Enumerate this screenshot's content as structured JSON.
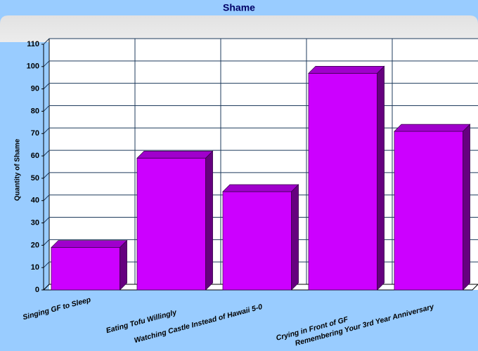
{
  "chart_data": {
    "type": "bar3d",
    "title": "Shame",
    "y_label": "Quantity of Shame",
    "categories": [
      "Singing GF to Sleep",
      "Eating Tofu Willingly",
      "Watching Castle Instead of Hawaii 5-0",
      "Crying in Front of GF",
      "Remembering Your 3rd Year Anniversary"
    ],
    "values": [
      19,
      59,
      44,
      97,
      71
    ],
    "color": "#cc00ff",
    "ylim": [
      0,
      110
    ],
    "yticks": [
      0,
      10,
      20,
      30,
      40,
      50,
      60,
      70,
      80,
      90,
      100,
      110
    ],
    "grid": true
  }
}
